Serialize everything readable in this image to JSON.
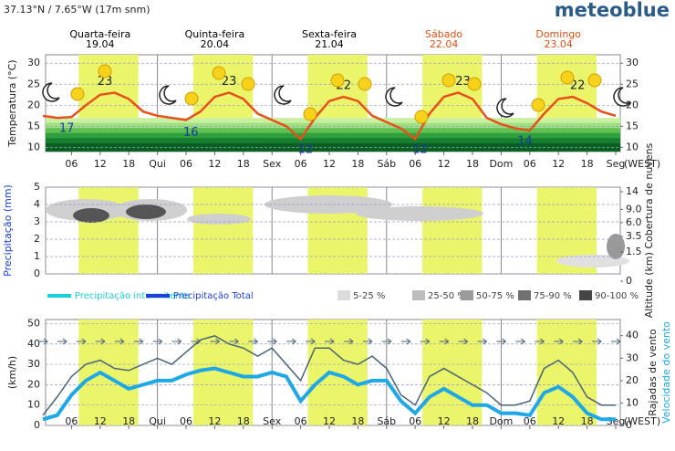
{
  "header": {
    "location": "37.13°N / 7.65°W (17m snm)",
    "logo": "meteoblue"
  },
  "days": [
    {
      "name": "Quarta-feira",
      "date": "19.04",
      "color": "#000000"
    },
    {
      "name": "Quinta-feira",
      "date": "20.04",
      "color": "#000000"
    },
    {
      "name": "Sexta-feira",
      "date": "21.04",
      "color": "#000000"
    },
    {
      "name": "Sábado",
      "date": "22.04",
      "color": "#e05010"
    },
    {
      "name": "Domingo",
      "date": "23.04",
      "color": "#e05010"
    }
  ],
  "xticks": [
    {
      "value": 6,
      "label": "06"
    },
    12,
    18,
    {
      "value": 24,
      "label": "Qui"
    },
    {
      "value": 30,
      "label": "06"
    },
    {
      "value": 36,
      "label": "12"
    },
    {
      "value": 42,
      "label": "18"
    },
    {
      "value": 48,
      "label": "Sex"
    },
    {
      "value": 54,
      "label": "06"
    },
    {
      "value": 60,
      "label": "12"
    },
    {
      "value": 66,
      "label": "18"
    },
    {
      "value": 72,
      "label": "Sáb"
    },
    {
      "value": 78,
      "label": "06"
    },
    {
      "value": 84,
      "label": "12"
    },
    {
      "value": 90,
      "label": "18"
    },
    {
      "value": 96,
      "label": "Dom"
    },
    {
      "value": 102,
      "label": "06"
    },
    {
      "value": 108,
      "label": "12"
    },
    {
      "value": 114,
      "label": "18"
    },
    {
      "value": 120,
      "label": "Seg"
    }
  ],
  "timezone": "(WEST)",
  "chart_data": [
    {
      "type": "line",
      "ylabel": "Temperatura (°C)",
      "ylim": [
        9,
        32
      ],
      "yticks": [
        10,
        15,
        20,
        25,
        30
      ],
      "x": [
        0,
        3,
        6,
        9,
        12,
        15,
        18,
        21,
        24,
        27,
        30,
        33,
        36,
        39,
        42,
        45,
        48,
        51,
        54,
        57,
        60,
        63,
        66,
        69,
        72,
        75,
        78,
        81,
        84,
        87,
        90,
        93,
        96,
        99,
        102,
        105,
        108,
        111,
        114,
        117,
        120
      ],
      "series": [
        {
          "name": "Temperatura",
          "color": "#e8501a",
          "values": [
            17.5,
            17,
            17.2,
            20,
            22.5,
            23,
            21.5,
            18.5,
            17.5,
            17,
            16.5,
            18.5,
            22,
            23,
            21.5,
            18,
            16.5,
            15,
            12,
            17,
            21,
            22,
            21,
            17.5,
            16,
            14.5,
            12,
            18,
            22,
            23,
            21.5,
            17,
            15.5,
            14.5,
            14,
            18,
            21.5,
            22,
            20.5,
            18.5,
            17.5
          ]
        }
      ],
      "annotations": [
        {
          "x": 5,
          "value": 17,
          "kind": "min"
        },
        {
          "x": 13,
          "value": 23,
          "kind": "max"
        },
        {
          "x": 31,
          "value": 16,
          "kind": "min"
        },
        {
          "x": 39,
          "value": 23,
          "kind": "max"
        },
        {
          "x": 55,
          "value": 12,
          "kind": "min"
        },
        {
          "x": 63,
          "value": 22,
          "kind": "max"
        },
        {
          "x": 79,
          "value": 12,
          "kind": "min"
        },
        {
          "x": 88,
          "value": 23,
          "kind": "max"
        },
        {
          "x": 101,
          "value": 14,
          "kind": "min"
        },
        {
          "x": 112,
          "value": 22,
          "kind": "max"
        }
      ]
    },
    {
      "type": "area",
      "ylabel": "Precipitação (mm)",
      "y2label": "Altitude (km) Cobertura de nuvens",
      "ylim": [
        0,
        5
      ],
      "yticks": [
        0,
        1,
        2,
        3,
        4,
        5
      ],
      "y2lim": [
        0,
        14
      ],
      "y2scale": "sqrt",
      "y2ticks": [
        0,
        1.5,
        3.5,
        {
          "value": 6,
          "label": "6.0"
        },
        {
          "value": 9,
          "label": "9.0"
        },
        14
      ],
      "legend": [
        {
          "name": "Precipitação intermitente",
          "color": "#19d0d8"
        },
        {
          "name": "Precipitação Total",
          "color": "#1e40d8"
        },
        {
          "name": "5-25 %",
          "color": "#dcdcdc"
        },
        {
          "name": "25-50 %",
          "color": "#bdbdbd"
        },
        {
          "name": "50-75 %",
          "color": "#9a9a9a"
        },
        {
          "name": "75-90 %",
          "color": "#707070"
        },
        {
          "name": "90-100 %",
          "color": "#454545"
        }
      ]
    },
    {
      "type": "line",
      "ylabel": "(km/h)",
      "y2label": "Rajadas de vento",
      "y3label": "Velocidade do vento",
      "ylim": [
        0,
        52
      ],
      "yticks": [
        0,
        10,
        20,
        30,
        40,
        50
      ],
      "y2lim": [
        0,
        47.2
      ],
      "y2ticks": [
        0,
        10,
        20,
        30,
        40
      ],
      "x": [
        0,
        3,
        6,
        9,
        12,
        15,
        18,
        21,
        24,
        27,
        30,
        33,
        36,
        39,
        42,
        45,
        48,
        51,
        54,
        57,
        60,
        63,
        66,
        69,
        72,
        75,
        78,
        81,
        84,
        87,
        90,
        93,
        96,
        99,
        102,
        105,
        108,
        111,
        114,
        117,
        120
      ],
      "series": [
        {
          "name": "Rajadas de vento",
          "color": "#4a6478",
          "values": [
            5,
            14,
            24,
            30,
            32,
            28,
            27,
            30,
            33,
            30,
            36,
            42,
            44,
            40,
            38,
            34,
            38,
            30,
            22,
            38,
            38,
            32,
            30,
            34,
            28,
            15,
            10,
            24,
            28,
            24,
            20,
            16,
            10,
            10,
            12,
            28,
            32,
            26,
            14,
            10,
            10
          ]
        },
        {
          "name": "Velocidade do vento",
          "color": "#1ea8e8",
          "values": [
            3,
            5,
            15,
            22,
            26,
            22,
            18,
            20,
            22,
            22,
            25,
            27,
            28,
            26,
            24,
            24,
            26,
            24,
            12,
            20,
            26,
            24,
            20,
            22,
            22,
            12,
            6,
            14,
            18,
            14,
            10,
            10,
            6,
            6,
            5,
            16,
            19,
            14,
            6,
            3,
            3
          ]
        }
      ]
    }
  ]
}
